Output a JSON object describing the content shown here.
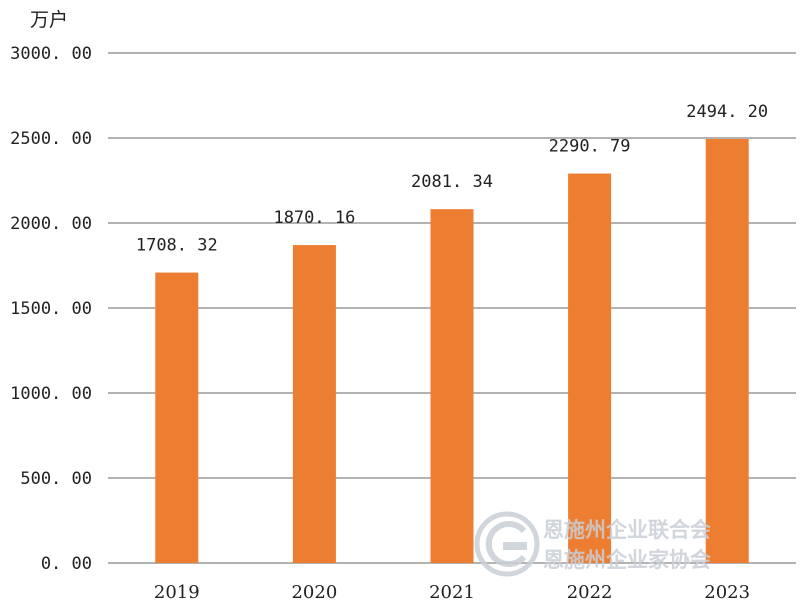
{
  "chart_data": {
    "type": "bar",
    "unit": "万户",
    "categories": [
      "2019",
      "2020",
      "2021",
      "2022",
      "2023"
    ],
    "values": [
      1708.32,
      1870.16,
      2081.34,
      2290.79,
      2494.2
    ],
    "value_labels": [
      "1708. 32",
      "1870. 16",
      "2081. 34",
      "2290. 79",
      "2494. 20"
    ],
    "yticks": [
      0,
      500,
      1000,
      1500,
      2000,
      2500,
      3000
    ],
    "ytick_labels": [
      "0. 00",
      "500. 00",
      "1000. 00",
      "1500. 00",
      "2000. 00",
      "2500. 00",
      "3000. 00"
    ],
    "ylim": [
      0,
      3000
    ],
    "grid": true,
    "legend": "none",
    "bar_color": "#ed7d31",
    "grid_color": "#9a9a9a"
  },
  "watermark": {
    "line1": "恩施州企业联合会",
    "line2": "恩施州企业家协会",
    "logo": "enterprise-association-logo"
  }
}
